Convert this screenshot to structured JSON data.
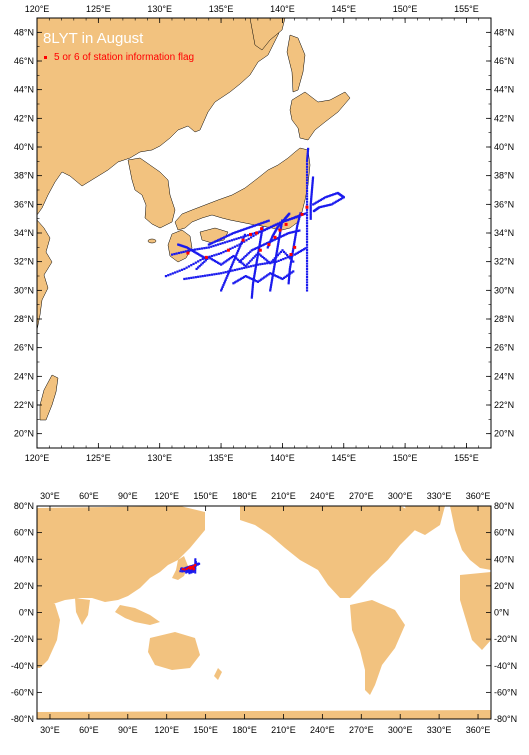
{
  "map_top": {
    "title": "8LYT in August",
    "legend_label": "5 or 6 of station information flag",
    "lon_ticks": [
      "120°E",
      "125°E",
      "130°E",
      "135°E",
      "140°E",
      "145°E",
      "150°E",
      "155°E"
    ],
    "lat_ticks": [
      "20°N",
      "22°N",
      "24°N",
      "26°N",
      "28°N",
      "30°N",
      "32°N",
      "34°N",
      "36°N",
      "38°N",
      "40°N",
      "42°N",
      "44°N",
      "46°N",
      "48°N"
    ],
    "lon_range": [
      120,
      157
    ],
    "lat_range": [
      19,
      49
    ]
  },
  "map_bottom": {
    "lon_ticks": [
      "30°E",
      "60°E",
      "90°E",
      "120°E",
      "150°E",
      "180°E",
      "210°E",
      "240°E",
      "270°E",
      "300°E",
      "330°E",
      "360°E"
    ],
    "lat_ticks": [
      "-80°N",
      "-60°N",
      "-40°N",
      "-20°N",
      "0°N",
      "20°N",
      "40°N",
      "60°N",
      "80°N"
    ],
    "lon_range": [
      20,
      370
    ],
    "lat_range": [
      -80,
      80
    ]
  },
  "colors": {
    "land": "#f2c27f",
    "sea": "#ffffff",
    "track": "#1a1aee",
    "flag": "#ff0000",
    "frame": "#000000"
  },
  "track_segments": [
    [
      [
        130.5,
        31.0
      ],
      [
        132.0,
        31.5
      ],
      [
        133.5,
        32.2
      ],
      [
        135.0,
        32.6
      ],
      [
        136.5,
        33.2
      ],
      [
        138.0,
        34.0
      ],
      [
        139.5,
        34.6
      ],
      [
        141.0,
        35.1
      ],
      [
        142.0,
        35.4
      ]
    ],
    [
      [
        131.0,
        32.5
      ],
      [
        132.5,
        32.8
      ],
      [
        134.0,
        33.0
      ],
      [
        135.5,
        33.4
      ],
      [
        137.0,
        33.8
      ],
      [
        138.5,
        34.2
      ],
      [
        140.0,
        34.8
      ],
      [
        141.5,
        35.2
      ]
    ],
    [
      [
        132.0,
        30.8
      ],
      [
        133.5,
        31.0
      ],
      [
        135.0,
        31.2
      ],
      [
        136.5,
        31.5
      ],
      [
        138.0,
        31.8
      ],
      [
        139.5,
        32.0
      ],
      [
        141.0,
        32.5
      ],
      [
        142.0,
        33.0
      ]
    ],
    [
      [
        135.0,
        30.0
      ],
      [
        135.5,
        31.0
      ],
      [
        136.0,
        32.0
      ],
      [
        136.5,
        33.0
      ],
      [
        137.0,
        34.0
      ]
    ],
    [
      [
        137.5,
        29.5
      ],
      [
        137.6,
        30.5
      ],
      [
        137.8,
        31.5
      ],
      [
        138.0,
        32.5
      ],
      [
        138.2,
        33.5
      ],
      [
        138.4,
        34.5
      ]
    ],
    [
      [
        139.0,
        30.0
      ],
      [
        139.2,
        31.0
      ],
      [
        139.4,
        32.0
      ],
      [
        139.6,
        33.0
      ],
      [
        139.8,
        34.0
      ],
      [
        140.0,
        35.0
      ]
    ],
    [
      [
        140.5,
        30.5
      ],
      [
        140.6,
        31.5
      ],
      [
        140.8,
        32.5
      ],
      [
        141.0,
        33.5
      ],
      [
        141.2,
        34.5
      ],
      [
        141.5,
        35.5
      ]
    ],
    [
      [
        142.0,
        30.0
      ],
      [
        142.0,
        31.5
      ],
      [
        142.0,
        33.0
      ],
      [
        142.0,
        34.5
      ],
      [
        142.0,
        36.0
      ],
      [
        142.0,
        37.5
      ],
      [
        142.0,
        39.0
      ],
      [
        142.1,
        40.0
      ]
    ],
    [
      [
        142.3,
        35.0
      ],
      [
        142.3,
        36.0
      ],
      [
        142.4,
        37.0
      ],
      [
        142.5,
        38.0
      ]
    ],
    [
      [
        142.5,
        36.0
      ],
      [
        143.5,
        36.5
      ],
      [
        144.5,
        36.8
      ],
      [
        145.0,
        36.5
      ],
      [
        144.0,
        36.0
      ],
      [
        143.0,
        35.8
      ],
      [
        142.5,
        35.5
      ]
    ],
    [
      [
        133.0,
        31.5
      ],
      [
        134.0,
        32.3
      ],
      [
        135.0,
        31.8
      ],
      [
        136.0,
        32.4
      ],
      [
        137.0,
        31.7
      ],
      [
        138.0,
        32.6
      ],
      [
        139.0,
        31.9
      ],
      [
        140.0,
        32.8
      ],
      [
        141.0,
        31.9
      ]
    ],
    [
      [
        134.0,
        33.2
      ],
      [
        135.0,
        33.6
      ],
      [
        136.0,
        34.0
      ],
      [
        137.0,
        34.3
      ],
      [
        138.0,
        34.6
      ],
      [
        139.0,
        34.9
      ]
    ],
    [
      [
        131.5,
        33.2
      ],
      [
        132.2,
        33.0
      ],
      [
        133.0,
        32.6
      ],
      [
        133.8,
        32.2
      ]
    ],
    [
      [
        136.0,
        30.5
      ],
      [
        137.0,
        31.0
      ],
      [
        138.0,
        30.6
      ],
      [
        139.0,
        31.2
      ],
      [
        140.0,
        30.8
      ],
      [
        141.0,
        31.4
      ]
    ],
    [
      [
        136.5,
        32.0
      ],
      [
        137.5,
        32.8
      ],
      [
        138.5,
        33.2
      ],
      [
        139.5,
        33.6
      ],
      [
        140.5,
        34.0
      ],
      [
        141.5,
        34.2
      ]
    ],
    [
      [
        138.8,
        33.0
      ],
      [
        139.2,
        33.8
      ],
      [
        139.6,
        34.4
      ],
      [
        140.2,
        35.0
      ],
      [
        140.6,
        35.4
      ]
    ]
  ],
  "flag_points": [
    [
      132.3,
      32.6
    ],
    [
      133.8,
      32.3
    ],
    [
      135.6,
      32.8
    ],
    [
      136.8,
      33.5
    ],
    [
      137.4,
      33.9
    ],
    [
      137.9,
      34.0
    ],
    [
      138.3,
      34.3
    ],
    [
      138.9,
      33.2
    ],
    [
      139.4,
      33.7
    ],
    [
      139.8,
      34.2
    ],
    [
      140.3,
      34.6
    ],
    [
      141.0,
      33.0
    ],
    [
      141.6,
      35.3
    ],
    [
      142.0,
      35.8
    ],
    [
      138.2,
      32.8
    ],
    [
      140.7,
      32.5
    ]
  ]
}
